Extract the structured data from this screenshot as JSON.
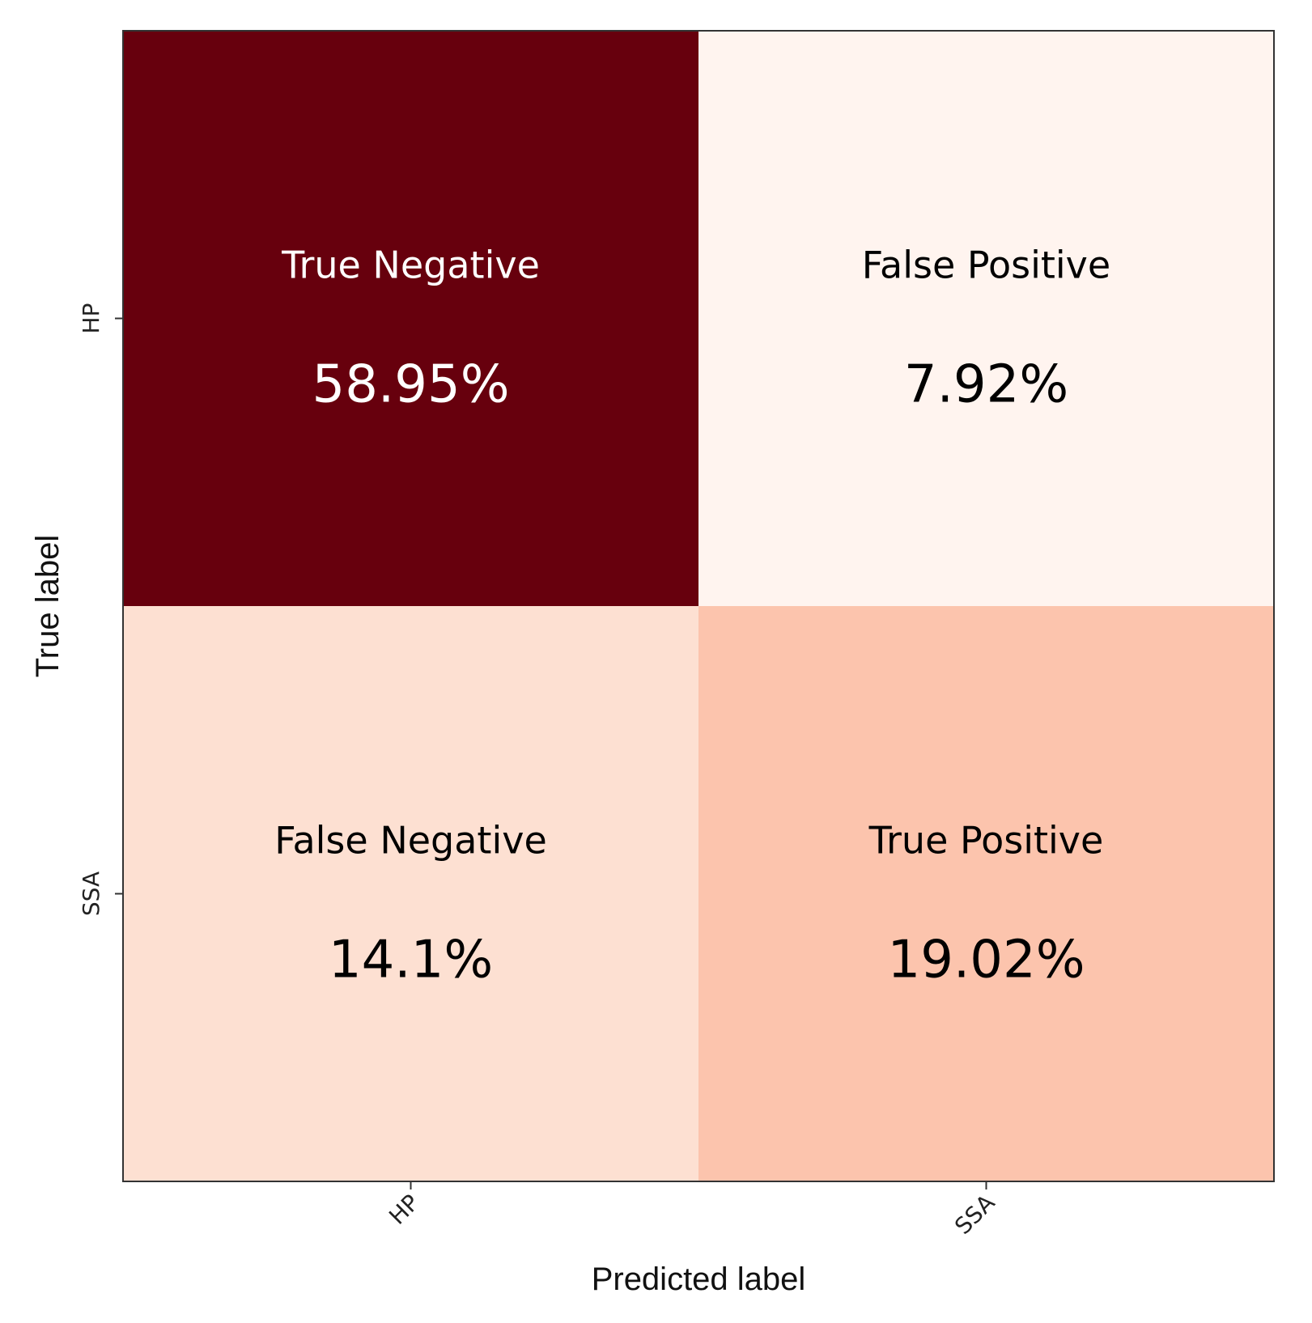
{
  "chart_data": {
    "type": "heatmap",
    "title": "",
    "xlabel": "Predicted label",
    "ylabel": "True label",
    "x_categories": [
      "HP",
      "SSA"
    ],
    "y_categories": [
      "HP",
      "SSA"
    ],
    "cells": [
      {
        "row": 0,
        "col": 0,
        "label": "True Negative",
        "value": 58.95,
        "text": "58.95%",
        "color": "#67000d",
        "text_color": "#ffffff"
      },
      {
        "row": 0,
        "col": 1,
        "label": "False Positive",
        "value": 7.92,
        "text": "7.92%",
        "color": "#fff4ef",
        "text_color": "#000000"
      },
      {
        "row": 1,
        "col": 0,
        "label": "False Negative",
        "value": 14.1,
        "text": "14.1%",
        "color": "#fde0d2",
        "text_color": "#000000"
      },
      {
        "row": 1,
        "col": 1,
        "label": "True Positive",
        "value": 19.02,
        "text": "19.02%",
        "color": "#fcc4ad",
        "text_color": "#000000"
      }
    ],
    "colormap": "Reds",
    "grid": false,
    "legend": "none"
  }
}
